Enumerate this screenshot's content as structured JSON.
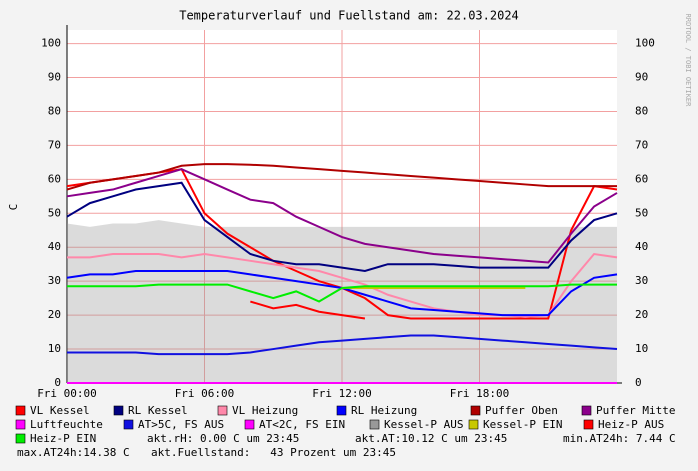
{
  "chart_data": {
    "type": "line",
    "title": "Temperaturverlauf und Fuellstand am: 22.03.2024",
    "y_label": "C",
    "watermark": "RRDTOOL / TOBI OETIKER",
    "x": [
      0,
      1,
      2,
      3,
      4,
      5,
      6,
      7,
      8,
      9,
      10,
      11,
      12,
      13,
      14,
      15,
      16,
      17,
      18,
      19,
      20,
      21,
      22,
      23,
      24
    ],
    "xlim": [
      0,
      24
    ],
    "xticks": [
      {
        "value": 0,
        "label": "Fri 00:00"
      },
      {
        "value": 6,
        "label": "Fri 06:00"
      },
      {
        "value": 12,
        "label": "Fri 12:00"
      },
      {
        "value": 18,
        "label": "Fri 18:00"
      }
    ],
    "ylim": [
      0,
      104
    ],
    "yticks": [
      0,
      10,
      20,
      30,
      40,
      50,
      60,
      70,
      80,
      90,
      100
    ],
    "grid": true,
    "series": [
      {
        "name": "Kessel-P AUS",
        "color": "#999999",
        "style": "area",
        "values": [
          47,
          46,
          47,
          47,
          48,
          47,
          46,
          46,
          46,
          46,
          46,
          46,
          46,
          46,
          46,
          46,
          46,
          46,
          46,
          46,
          46,
          46,
          46,
          46,
          46
        ]
      },
      {
        "name": "VL Kessel",
        "color": "#ff0000",
        "values": [
          58,
          59,
          60,
          61,
          62,
          63,
          50,
          44,
          40,
          36,
          33,
          30,
          28,
          25,
          20,
          19,
          19,
          19,
          19,
          19,
          19,
          19,
          45,
          58,
          57
        ]
      },
      {
        "name": "RL Kessel",
        "color": "#000080",
        "values": [
          49,
          53,
          55,
          57,
          58,
          59,
          48,
          43,
          38,
          36,
          35,
          35,
          34,
          33,
          35,
          35,
          35,
          34.5,
          34,
          34,
          34,
          34,
          42,
          48,
          50
        ]
      },
      {
        "name": "VL Heizung",
        "color": "#ff88aa",
        "values": [
          37,
          37,
          38,
          38,
          38,
          37,
          38,
          37,
          36,
          35,
          34,
          33,
          31,
          29,
          26,
          24,
          22,
          21,
          20,
          20,
          19.5,
          20,
          30,
          38,
          37
        ]
      },
      {
        "name": "RL Heizung",
        "color": "#0000ff",
        "values": [
          31,
          32,
          32,
          33,
          33,
          33,
          33,
          33,
          32,
          31,
          30,
          29,
          28,
          26,
          24,
          22,
          21.5,
          21,
          20.5,
          20,
          20,
          20,
          27,
          31,
          32
        ]
      },
      {
        "name": "Puffer Oben",
        "color": "#b00000",
        "values": [
          57,
          59,
          60,
          61,
          62,
          64,
          64.5,
          64.5,
          64.3,
          64,
          63.5,
          63,
          62.5,
          62,
          61.5,
          61,
          60.5,
          60,
          59.5,
          59,
          58.5,
          58,
          58,
          58,
          58
        ]
      },
      {
        "name": "Puffer Mitte",
        "color": "#8b008b",
        "values": [
          55,
          56,
          57,
          59,
          61,
          63,
          60,
          57,
          54,
          53,
          49,
          46,
          43,
          41,
          40,
          39,
          38,
          37.5,
          37,
          36.5,
          36,
          35.5,
          44,
          52,
          56
        ]
      },
      {
        "name": "Luftfeuchte",
        "color": "#ff00ff",
        "values": [
          0,
          0,
          0,
          0,
          0,
          0,
          0,
          0,
          0,
          0,
          0,
          0,
          0,
          0,
          0,
          0,
          0,
          0,
          0,
          0,
          0,
          0,
          0,
          0,
          0
        ]
      },
      {
        "name": "AT>5C, FS AUS",
        "color": "#1010e0",
        "values": [
          9,
          9,
          9,
          9,
          8.5,
          8.5,
          8.5,
          8.5,
          9,
          10,
          11,
          12,
          12.5,
          13,
          13.5,
          14,
          14,
          13.5,
          13,
          12.5,
          12,
          11.5,
          11,
          10.5,
          10
        ]
      },
      {
        "name": "AT<2C, FS EIN",
        "color": "#ff00ff",
        "values": [
          null,
          null,
          null,
          null,
          null,
          null,
          null,
          null,
          null,
          null,
          null,
          null,
          null,
          null,
          null,
          null,
          null,
          null,
          null,
          null,
          null,
          null,
          null,
          null,
          null
        ]
      },
      {
        "name": "Kessel-P EIN",
        "color": "#c8c800",
        "values": [
          null,
          null,
          null,
          null,
          null,
          null,
          null,
          null,
          null,
          null,
          null,
          null,
          28,
          28,
          28,
          28,
          28,
          28,
          28,
          28,
          28,
          null,
          null,
          null,
          null
        ]
      },
      {
        "name": "Heiz-P AUS",
        "color": "#ff0000",
        "values": [
          null,
          null,
          null,
          null,
          null,
          null,
          null,
          null,
          24,
          22,
          23,
          21,
          20,
          19,
          null,
          null,
          null,
          null,
          null,
          null,
          null,
          null,
          null,
          null,
          null
        ]
      },
      {
        "name": "Heiz-P EIN",
        "color": "#00ee00",
        "values": [
          28.5,
          28.5,
          28.5,
          28.5,
          29,
          29,
          29,
          29,
          27,
          25,
          27,
          24,
          28,
          28.5,
          28.5,
          28.5,
          28.5,
          28.5,
          28.5,
          28.5,
          28.5,
          28.5,
          29,
          29,
          29
        ]
      }
    ],
    "notes": [
      "akt.rH: 0.00 C um 23:45",
      "akt.AT:10.12 C um 23:45",
      "min.AT24h: 7.44 C",
      "max.AT24h:14.38 C",
      "akt.Fuellstand:   43 Prozent um 23:45"
    ]
  }
}
